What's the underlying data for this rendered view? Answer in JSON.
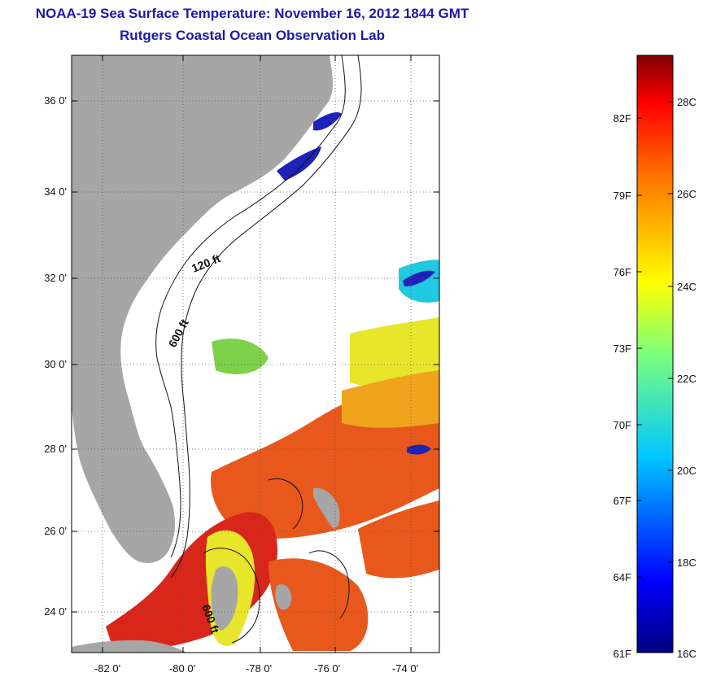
{
  "header": {
    "title_line1": "NOAA-19 Sea Surface Temperature:  November 16, 2012 1844 GMT",
    "title_line2": "Rutgers Coastal Ocean Observation Lab"
  },
  "map": {
    "lat_ticks": [
      "36 0'",
      "34 0'",
      "32 0'",
      "30 0'",
      "28 0'",
      "26 0'",
      "24 0'"
    ],
    "lon_ticks": [
      "-82 0'",
      "-80 0'",
      "-78 0'",
      "-76 0'",
      "-74 0'"
    ],
    "contour_labels": [
      "120 ft",
      "600 ft",
      "600 ft"
    ],
    "colors": {
      "land": "#a6a6a6",
      "cloud": "#ffffff",
      "warm": "#e8581c",
      "hot": "#d8261a",
      "mid": "#f0a41e",
      "yellow": "#e7e62b",
      "green": "#7fd04a",
      "cyan": "#20c8e0",
      "cold": "#1e22b8"
    }
  },
  "colorbar": {
    "fahrenheit_labels": [
      "82F",
      "79F",
      "76F",
      "73F",
      "70F",
      "67F",
      "64F",
      "61F"
    ],
    "celsius_labels": [
      "28C",
      "26C",
      "24C",
      "22C",
      "20C",
      "18C",
      "16C"
    ],
    "range_c": [
      16,
      29
    ],
    "range_f": [
      61,
      84
    ]
  }
}
